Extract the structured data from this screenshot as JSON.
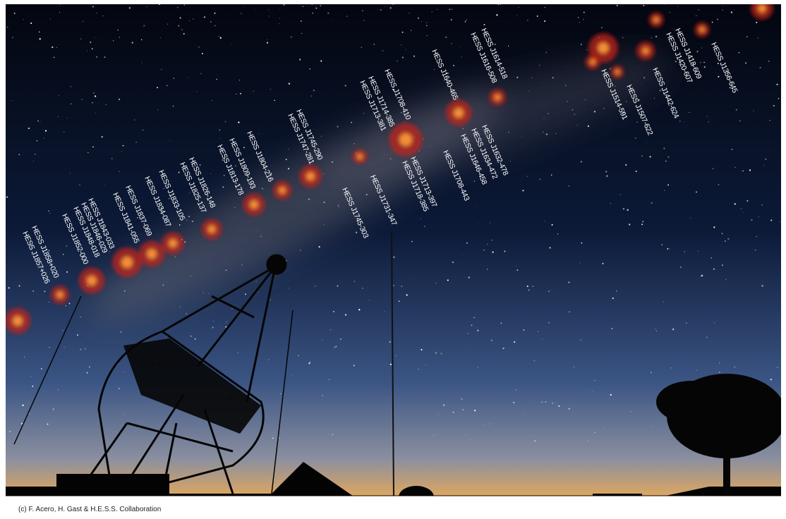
{
  "labels": [
    "HESS J1858+020",
    "HESS J1857+026",
    "HESS J1852-000",
    "HESS J1843-033",
    "HESS J1846-029",
    "HESS J1848-018",
    "HESS J1841-055",
    "HESS J1837-069",
    "HESS J1834-087",
    "HESS J1833-105",
    "HESS J1826-148",
    "HESS J1825-137",
    "HESS J1813-178",
    "HESS J1809-193",
    "HESS J1804-216",
    "HESS J1745-290",
    "HESS J1747-281",
    "HESS J1745-303",
    "HESS J1731-347",
    "HESS J1714-385",
    "HESS J1713-381",
    "HESS J1708-410",
    "HESS J1713-397",
    "HESS J1718-385",
    "HESS J1640-465",
    "HESS J1708-443",
    "HESS J1646-458",
    "HESS J1634-472",
    "HESS J1632-478",
    "HESS J1614-518",
    "HESS J1616-508",
    "HESS J1514-591",
    "HESS J1507-622",
    "HESS J1442-624",
    "HESS J1418-609",
    "HESS J1420-607",
    "HESS J1356-645"
  ],
  "credit": "(c) F. Acero, H. Gast & H.E.S.S. Collaboration"
}
